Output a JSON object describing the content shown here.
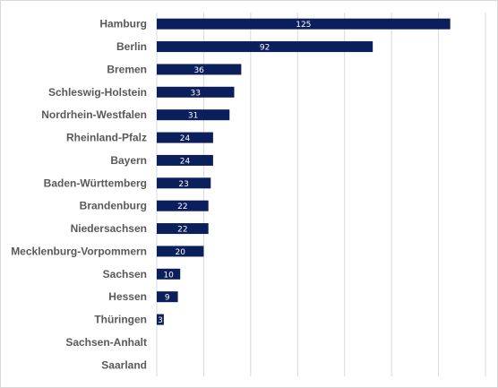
{
  "chart_data": {
    "type": "bar",
    "orientation": "horizontal",
    "categories": [
      "Hamburg",
      "Berlin",
      "Bremen",
      "Schleswig-Holstein",
      "Nordrhein-Westfalen",
      "Rheinland-Pfalz",
      "Bayern",
      "Baden-Württemberg",
      "Brandenburg",
      "Niedersachsen",
      "Mecklenburg-Vorpommern",
      "Sachsen",
      "Hessen",
      "Thüringen",
      "Sachsen-Anhalt",
      "Saarland"
    ],
    "values": [
      125,
      92,
      36,
      33,
      31,
      24,
      24,
      23,
      22,
      22,
      20,
      10,
      9,
      3,
      null,
      null
    ],
    "data_labels": [
      "125",
      "92",
      "36",
      "33",
      "31",
      "24",
      "24",
      "23",
      "22",
      "22",
      "20",
      "10",
      "9",
      "3",
      "",
      ""
    ],
    "title": "",
    "xlabel": "",
    "ylabel": "",
    "xlim": [
      0,
      140
    ],
    "grid": "vertical",
    "legend": "none",
    "bar_color": "#0b1f5c",
    "grid_color": "#d9d9d9",
    "label_color": "#595959"
  }
}
